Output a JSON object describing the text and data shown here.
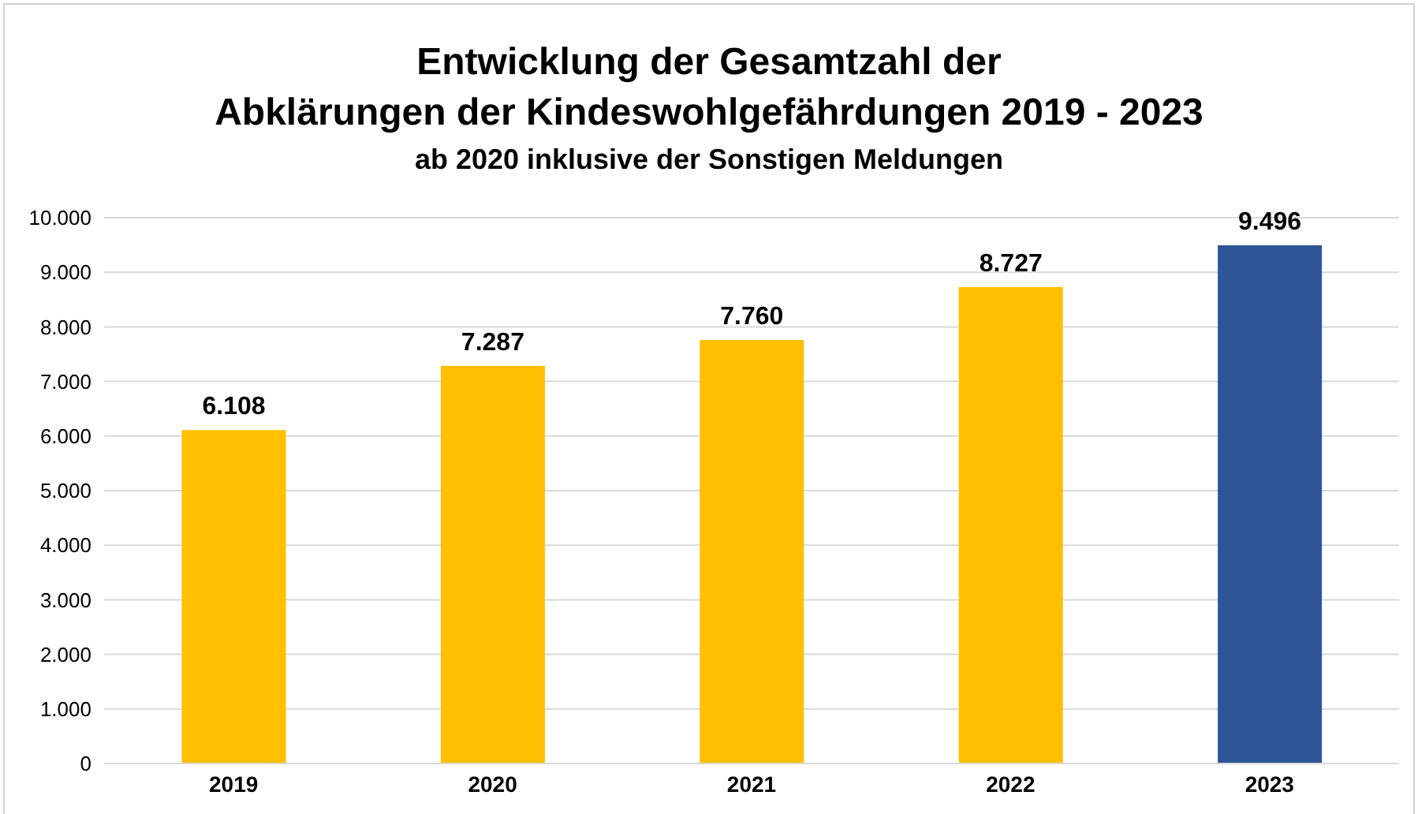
{
  "chart_data": {
    "type": "bar",
    "title": "Entwicklung der Gesamtzahl der\nAbklärungen der Kindeswohlgefährdungen 2019 - 2023",
    "subtitle": "ab 2020 inklusive der Sonstigen Meldungen",
    "categories": [
      "2019",
      "2020",
      "2021",
      "2022",
      "2023"
    ],
    "values": [
      6108,
      7287,
      7760,
      8727,
      9496
    ],
    "colors": [
      "#ffc000",
      "#ffc000",
      "#ffc000",
      "#ffc000",
      "#2f5597"
    ],
    "value_labels": [
      "6.108",
      "7.287",
      "7.760",
      "8.727",
      "9.496"
    ],
    "ylim": [
      0,
      10000
    ],
    "yticks": [
      0,
      {
        "value": 1000,
        "label": "1.000"
      },
      {
        "value": 2000,
        "label": "2.000"
      },
      {
        "value": 3000,
        "label": "3.000"
      },
      {
        "value": 4000,
        "label": "4.000"
      },
      {
        "value": 5000,
        "label": "5.000"
      },
      {
        "value": 6000,
        "label": "6.000"
      },
      {
        "value": 7000,
        "label": "7.000"
      },
      {
        "value": 8000,
        "label": "8.000"
      },
      {
        "value": 9000,
        "label": "9.000"
      },
      {
        "value": 10000,
        "label": "10.000"
      }
    ],
    "grid": "y",
    "legend": false
  }
}
